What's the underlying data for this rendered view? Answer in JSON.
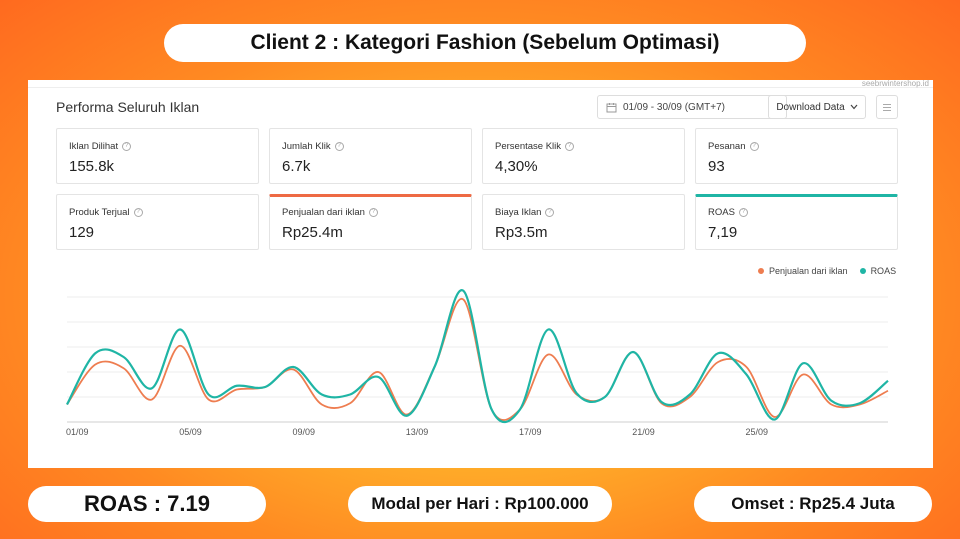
{
  "header": {
    "title": "Client 2 : Kategori Fashion (Sebelum Optimasi)"
  },
  "footer": {
    "roas": "ROAS : 7.19",
    "modal": "Modal per Hari : Rp100.000",
    "omset": "Omset : Rp25.4 Juta"
  },
  "panel": {
    "url": "seebrwintershop.id",
    "title": "Performa Seluruh Iklan",
    "date_range": "01/09 - 30/09 (GMT+7)",
    "download_label": "Download Data",
    "icons": {
      "calendar": "calendar-icon",
      "chevron": "chevron-down-icon",
      "menu": "menu-icon",
      "help": "question-icon"
    }
  },
  "metrics": [
    {
      "label": "Iklan Dilihat",
      "value": "155.8k"
    },
    {
      "label": "Jumlah Klik",
      "value": "6.7k"
    },
    {
      "label": "Persentase Klik",
      "value": "4,30%"
    },
    {
      "label": "Pesanan",
      "value": "93"
    },
    {
      "label": "Produk Terjual",
      "value": "129"
    },
    {
      "label": "Penjualan dari iklan",
      "value": "Rp25.4m"
    },
    {
      "label": "Biaya Iklan",
      "value": "Rp3.5m"
    },
    {
      "label": "ROAS",
      "value": "7,19"
    }
  ],
  "colors": {
    "sales": "#ee7d50",
    "roas": "#1fb5a5",
    "accent_orange": "#ee6a44"
  },
  "chart_data": {
    "type": "line",
    "x": [
      "01/09",
      "02/09",
      "03/09",
      "04/09",
      "05/09",
      "06/09",
      "07/09",
      "08/09",
      "09/09",
      "10/09",
      "11/09",
      "12/09",
      "13/09",
      "14/09",
      "15/09",
      "16/09",
      "17/09",
      "18/09",
      "19/09",
      "20/09",
      "21/09",
      "22/09",
      "23/09",
      "24/09",
      "25/09",
      "26/09",
      "27/09",
      "28/09",
      "29/09",
      "30/09"
    ],
    "tick_labels": [
      "01/09",
      "05/09",
      "09/09",
      "13/09",
      "17/09",
      "21/09",
      "25/09"
    ],
    "legend_position": "top-right",
    "grid": true,
    "ylim": [
      0,
      100
    ],
    "series": [
      {
        "name": "Penjualan dari iklan",
        "values": [
          14,
          46,
          43,
          18,
          61,
          18,
          26,
          28,
          42,
          14,
          15,
          40,
          6,
          45,
          98,
          10,
          10,
          54,
          22,
          20,
          56,
          15,
          20,
          48,
          44,
          4,
          38,
          14,
          14,
          25
        ]
      },
      {
        "name": "ROAS",
        "values": [
          14,
          55,
          52,
          27,
          74,
          22,
          29,
          28,
          44,
          22,
          22,
          36,
          5,
          45,
          105,
          10,
          10,
          74,
          23,
          20,
          56,
          16,
          22,
          55,
          38,
          2,
          47,
          17,
          15,
          33
        ]
      }
    ]
  }
}
